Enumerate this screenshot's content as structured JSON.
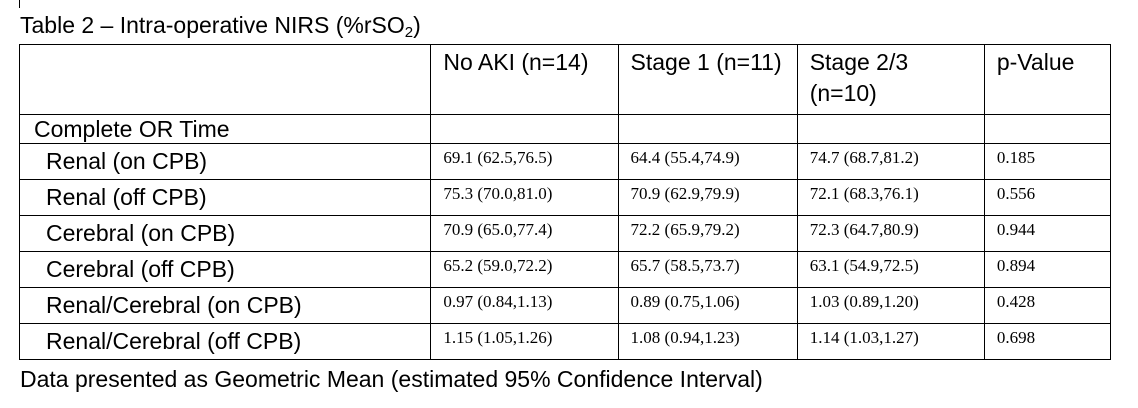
{
  "caption": {
    "prefix": "Table 2 – Intra-operative NIRS (%rSO",
    "subscript": "2",
    "suffix": ")"
  },
  "table": {
    "headers": [
      "",
      "No AKI (n=14)",
      "Stage 1 (n=11)",
      "Stage 2/3 (n=10)",
      "p-Value"
    ],
    "group_label": "Complete OR Time",
    "rows": [
      {
        "label": "Renal (on CPB)",
        "cells": [
          "69.1 (62.5,76.5)",
          "64.4 (55.4,74.9)",
          "74.7 (68.7,81.2)",
          "0.185"
        ]
      },
      {
        "label": "Renal (off CPB)",
        "cells": [
          "75.3 (70.0,81.0)",
          "70.9 (62.9,79.9)",
          "72.1 (68.3,76.1)",
          "0.556"
        ]
      },
      {
        "label": "Cerebral (on CPB)",
        "cells": [
          "70.9 (65.0,77.4)",
          "72.2 (65.9,79.2)",
          "72.3 (64.7,80.9)",
          "0.944"
        ]
      },
      {
        "label": "Cerebral (off CPB)",
        "cells": [
          "65.2 (59.0,72.2)",
          "65.7 (58.5,73.7)",
          "63.1 (54.9,72.5)",
          "0.894"
        ]
      },
      {
        "label": "Renal/Cerebral (on CPB)",
        "cells": [
          "0.97 (0.84,1.13)",
          "0.89 (0.75,1.06)",
          "1.03 (0.89,1.20)",
          "0.428"
        ]
      },
      {
        "label": "Renal/Cerebral (off CPB)",
        "cells": [
          "1.15 (1.05,1.26)",
          "1.08 (0.94,1.23)",
          "1.14 (1.03,1.27)",
          "0.698"
        ]
      }
    ]
  },
  "footnote": "Data presented as Geometric Mean (estimated 95% Confidence Interval)"
}
